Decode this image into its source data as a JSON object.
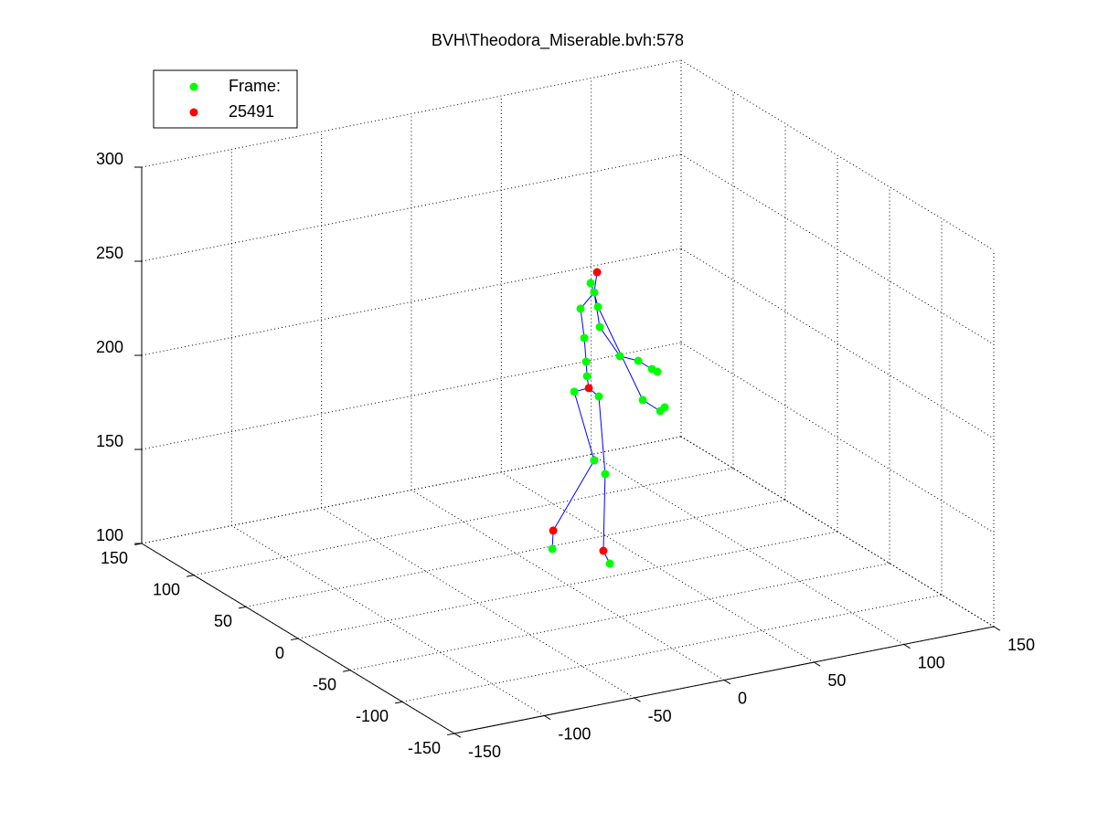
{
  "chart_data": {
    "type": "scatter3d",
    "title": "BVH\\Theodora_Miserable.bvh:578",
    "xlim": [
      -150,
      150
    ],
    "ylim": [
      -150,
      150
    ],
    "zlim": [
      100,
      300
    ],
    "xticks": [
      -150,
      -100,
      -50,
      0,
      50,
      100,
      150
    ],
    "yticks": [
      -150,
      -100,
      -50,
      0,
      50,
      100,
      150
    ],
    "zticks": [
      100,
      150,
      200,
      250,
      300
    ],
    "grid": true,
    "legend": "northwest",
    "series": [
      {
        "name": "Frame:",
        "color": "#00ff00",
        "x": [
          35.9,
          37.9,
          30.3,
          40.0,
          32.4,
          33.4,
          33.9,
          41.0,
          52.2,
          62.4,
          70.0,
          73.0,
          64.9,
          74.6,
          77.1,
          26.8,
          40.5,
          37.9,
          44.0,
          14.6,
          46.6
        ],
        "y": [
          40,
          40,
          40,
          40,
          40,
          40,
          40,
          40,
          40,
          40,
          40,
          40,
          40,
          40,
          40,
          40,
          40,
          40,
          40,
          40,
          40
        ],
        "z": [
          240.2,
          234.9,
          227.7,
          226.8,
          211.7,
          198.9,
          191.1,
          215.9,
          198.3,
          193.9,
          188.1,
          186.1,
          172.6,
          164.9,
          166.4,
          184.2,
          179.1,
          145.6,
          137.2,
          103.0,
          89.1
        ]
      },
      {
        "name": "25491",
        "color": "#ff0000",
        "x": [
          39.5,
          34.9,
          15.1,
          43.0
        ],
        "y": [
          40,
          40,
          40,
          40
        ],
        "z": [
          245.3,
          184.6,
          112.6,
          96.6
        ]
      }
    ],
    "lines": [
      {
        "color": "#0000ff",
        "x": [
          35.9,
          37.9,
          30.3,
          32.4,
          33.4,
          33.9,
          34.9
        ],
        "y": [
          40,
          40,
          40,
          40,
          40,
          40,
          40
        ],
        "z": [
          240.2,
          234.9,
          227.7,
          211.7,
          198.9,
          191.1,
          184.6
        ]
      },
      {
        "color": "#0000ff",
        "x": [
          39.5,
          37.9
        ],
        "y": [
          40,
          40
        ],
        "z": [
          245.3,
          234.9
        ]
      },
      {
        "color": "#0000ff",
        "x": [
          37.9,
          41.0,
          52.2,
          62.4,
          70.0
        ],
        "y": [
          40,
          40,
          40,
          40,
          40
        ],
        "z": [
          234.9,
          215.9,
          198.3,
          193.9,
          188.1
        ]
      },
      {
        "color": "#0000ff",
        "x": [
          37.9,
          40.0,
          64.9,
          74.6
        ],
        "y": [
          40,
          40,
          40,
          40
        ],
        "z": [
          234.9,
          226.8,
          172.6,
          164.9
        ]
      },
      {
        "color": "#0000ff",
        "x": [
          34.9,
          26.8,
          37.9,
          15.1,
          14.6
        ],
        "y": [
          40,
          40,
          40,
          40,
          40
        ],
        "z": [
          184.6,
          184.2,
          145.6,
          112.6,
          103.0
        ]
      },
      {
        "color": "#0000ff",
        "x": [
          34.9,
          40.5,
          44.0,
          43.0,
          46.6
        ],
        "y": [
          40,
          40,
          40,
          40,
          40
        ],
        "z": [
          184.6,
          179.1,
          137.2,
          96.6,
          89.1
        ]
      }
    ]
  }
}
